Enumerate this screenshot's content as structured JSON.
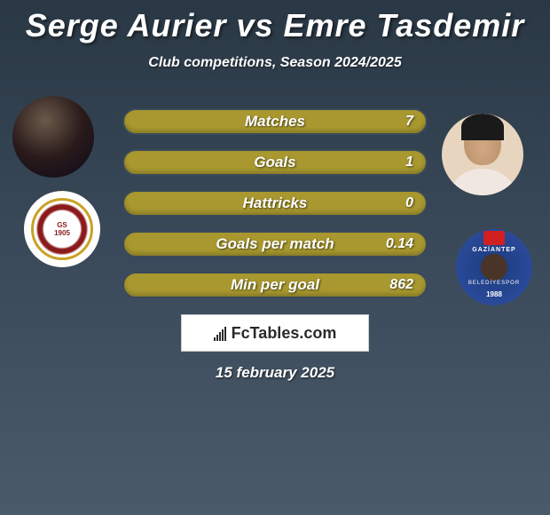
{
  "title": "Serge Aurier vs Emre Tasdemir",
  "subtitle": "Club competitions, Season 2024/2025",
  "stats": [
    {
      "label": "Matches",
      "value": "7"
    },
    {
      "label": "Goals",
      "value": "1"
    },
    {
      "label": "Hattricks",
      "value": "0"
    },
    {
      "label": "Goals per match",
      "value": "0.14"
    },
    {
      "label": "Min per goal",
      "value": "862"
    }
  ],
  "branding": "FcTables.com",
  "date": "15 february 2025",
  "colors": {
    "bar_fill": "#a8982f",
    "background_top": "#2a3845",
    "background_bottom": "#4a5a6a",
    "text": "#ffffff"
  },
  "typography": {
    "title_fontsize": 36,
    "subtitle_fontsize": 16,
    "stat_label_fontsize": 17,
    "stat_value_fontsize": 16,
    "date_fontsize": 17
  }
}
